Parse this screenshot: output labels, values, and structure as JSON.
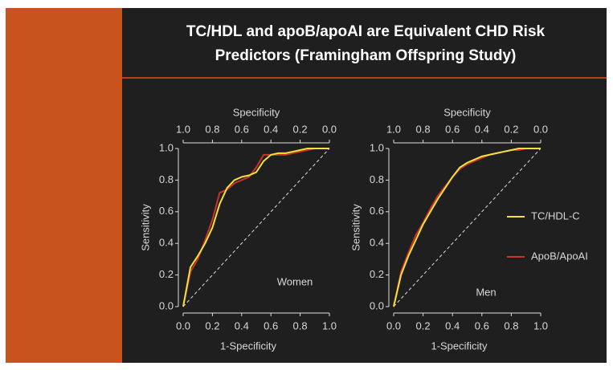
{
  "header": {
    "title": [
      "TC/HDL and apoB/apoAI are Equivalent CHD Risk",
      "Predictors (Framingham Offspring Study)"
    ]
  },
  "chart_data": [
    {
      "type": "line",
      "annotation": "Women",
      "xlabel": "1-Specificity",
      "ylabel": "Sensitivity",
      "x2label": "Specificity",
      "x": [
        0,
        0.05,
        0.1,
        0.15,
        0.2,
        0.25,
        0.3,
        0.35,
        0.4,
        0.45,
        0.5,
        0.55,
        0.6,
        0.65,
        0.7,
        0.75,
        0.8,
        0.85,
        0.9,
        0.95,
        1
      ],
      "series": [
        {
          "name": "TC/HDL-C",
          "color": "#f2e23c",
          "values": [
            0,
            0.25,
            0.32,
            0.4,
            0.5,
            0.65,
            0.75,
            0.8,
            0.82,
            0.83,
            0.85,
            0.92,
            0.96,
            0.97,
            0.97,
            0.98,
            0.99,
            1,
            1,
            1,
            1
          ]
        },
        {
          "name": "ApoB/ApoAI",
          "color": "#c8322a",
          "values": [
            0,
            0.22,
            0.3,
            0.42,
            0.55,
            0.72,
            0.74,
            0.78,
            0.8,
            0.82,
            0.88,
            0.96,
            0.96,
            0.96,
            0.96,
            0.97,
            0.98,
            0.99,
            1,
            1,
            1
          ]
        }
      ],
      "xlim": [
        0,
        1
      ],
      "ylim": [
        0,
        1
      ],
      "x2lim": [
        1,
        0
      ],
      "xticks": [
        {
          "value": 0,
          "label": "0.0"
        },
        0.2,
        0.4,
        0.6,
        0.8,
        {
          "value": 1,
          "label": "1.0"
        }
      ],
      "yticks": [
        {
          "value": 0,
          "label": "0.0"
        },
        0.2,
        0.4,
        0.6,
        0.8,
        {
          "value": 1,
          "label": "1.0"
        }
      ],
      "x2ticks": [
        {
          "value": 1,
          "label": "1.0"
        },
        0.8,
        0.6,
        0.4,
        0.2,
        {
          "value": 0,
          "label": "0.0"
        }
      ]
    },
    {
      "type": "line",
      "annotation": "Men",
      "legend": "right",
      "xlabel": "1-Specificity",
      "ylabel": "Sensitivity",
      "x2label": "Specificity",
      "x": [
        0,
        0.05,
        0.1,
        0.15,
        0.2,
        0.25,
        0.3,
        0.35,
        0.4,
        0.45,
        0.5,
        0.55,
        0.6,
        0.65,
        0.7,
        0.75,
        0.8,
        0.85,
        0.9,
        0.95,
        1
      ],
      "series": [
        {
          "name": "TC/HDL-C",
          "color": "#f2e23c",
          "values": [
            0,
            0.2,
            0.32,
            0.42,
            0.52,
            0.6,
            0.68,
            0.75,
            0.82,
            0.88,
            0.91,
            0.93,
            0.95,
            0.96,
            0.97,
            0.98,
            0.99,
            1,
            1,
            1,
            1
          ]
        },
        {
          "name": "ApoB/ApoAI",
          "color": "#c8322a",
          "values": [
            0,
            0.22,
            0.34,
            0.45,
            0.53,
            0.62,
            0.7,
            0.76,
            0.82,
            0.87,
            0.9,
            0.92,
            0.94,
            0.96,
            0.97,
            0.98,
            0.99,
            0.99,
            1,
            1,
            1
          ]
        }
      ],
      "xlim": [
        0,
        1
      ],
      "ylim": [
        0,
        1
      ],
      "x2lim": [
        1,
        0
      ],
      "xticks": [
        {
          "value": 0,
          "label": "0.0"
        },
        0.2,
        0.4,
        0.6,
        0.8,
        {
          "value": 1,
          "label": "1.0"
        }
      ],
      "yticks": [
        {
          "value": 0,
          "label": "0.0"
        },
        0.2,
        0.4,
        0.6,
        0.8,
        {
          "value": 1,
          "label": "1.0"
        }
      ],
      "x2ticks": [
        {
          "value": 1,
          "label": "1.0"
        },
        0.8,
        0.6,
        0.4,
        0.2,
        {
          "value": 0,
          "label": "0.0"
        }
      ]
    }
  ]
}
